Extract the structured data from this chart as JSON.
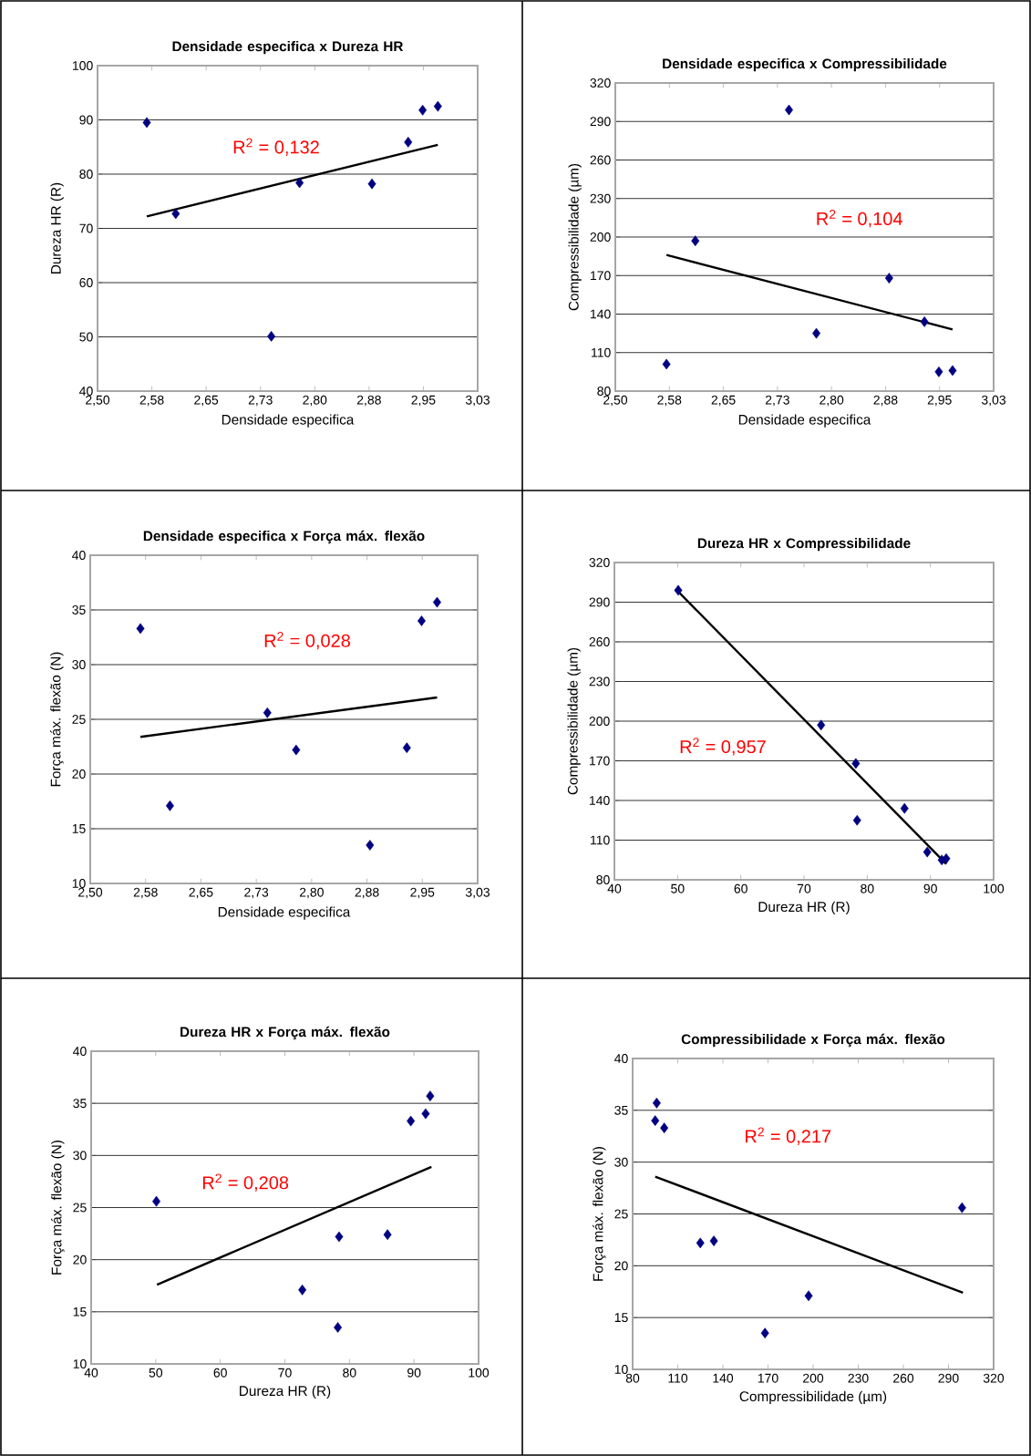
{
  "chart_data": [
    {
      "type": "scatter",
      "title": "Densidade especifica x Dureza HR",
      "xlabel": "Densidade especifica",
      "ylabel": "Dureza HR (R)",
      "annotations": [
        "R$^{2}$ = 0,132"
      ],
      "grid": "y",
      "xlim": [
        2.5,
        3.025
      ],
      "ylim": [
        40,
        100
      ],
      "xticks": [
        {
          "value": 2.5,
          "label": "2,50"
        },
        {
          "value": 2.575,
          "label": "2,58"
        },
        {
          "value": 2.65,
          "label": "2,65"
        },
        {
          "value": 2.725,
          "label": "2,73"
        },
        {
          "value": 2.8,
          "label": "2,80"
        },
        {
          "value": 2.875,
          "label": "2,88"
        },
        {
          "value": 2.95,
          "label": "2,95"
        },
        {
          "value": 3.025,
          "label": "3,03"
        }
      ],
      "yticks": [
        40,
        50,
        60,
        70,
        80,
        90,
        100
      ],
      "series": [
        {
          "type": "scatter",
          "color": "#000080",
          "marker": "diamond",
          "x": [
            2.568,
            2.608,
            2.74,
            2.779,
            2.879,
            2.929,
            2.949,
            2.97
          ],
          "values": [
            89.5,
            72.7,
            50.1,
            78.4,
            78.2,
            85.9,
            91.8,
            92.5
          ]
        },
        {
          "type": "line",
          "color": "#000000",
          "line_style": "solid",
          "x": [
            2.568,
            2.97
          ],
          "values": [
            72.2,
            85.4
          ]
        }
      ]
    },
    {
      "type": "scatter",
      "title": "Densidade especifica x Compressibilidade",
      "xlabel": "Densidade especifica",
      "ylabel": "Compressibilidade (µm)",
      "annotations": [
        "R$^{2}$ = 0,104"
      ],
      "grid": "y",
      "xlim": [
        2.5,
        3.025
      ],
      "ylim": [
        80,
        320
      ],
      "xticks": [
        {
          "value": 2.5,
          "label": "2,50"
        },
        {
          "value": 2.575,
          "label": "2,58"
        },
        {
          "value": 2.65,
          "label": "2,65"
        },
        {
          "value": 2.725,
          "label": "2,73"
        },
        {
          "value": 2.8,
          "label": "2,80"
        },
        {
          "value": 2.875,
          "label": "2,88"
        },
        {
          "value": 2.95,
          "label": "2,95"
        },
        {
          "value": 3.025,
          "label": "3,03"
        }
      ],
      "yticks": [
        80,
        110,
        140,
        170,
        200,
        230,
        260,
        290,
        320
      ],
      "series": [
        {
          "type": "scatter",
          "color": "#000080",
          "marker": "diamond",
          "x": [
            2.571,
            2.611,
            2.741,
            2.779,
            2.88,
            2.929,
            2.949,
            2.968
          ],
          "values": [
            101,
            197,
            299,
            125,
            168,
            134,
            95,
            96
          ]
        },
        {
          "type": "line",
          "color": "#000000",
          "line_style": "solid",
          "x": [
            2.571,
            2.968
          ],
          "values": [
            186,
            128
          ]
        }
      ]
    },
    {
      "type": "scatter",
      "title": "Densidade especifica x Força máx. flexão",
      "xlabel": "Densidade especifica",
      "ylabel": "Força máx. flexão (N)",
      "annotations": [
        "R$^{2}$ = 0,028"
      ],
      "grid": "y",
      "xlim": [
        2.5,
        3.025
      ],
      "ylim": [
        10,
        40
      ],
      "xticks": [
        {
          "value": 2.5,
          "label": "2,50"
        },
        {
          "value": 2.575,
          "label": "2,58"
        },
        {
          "value": 2.65,
          "label": "2,65"
        },
        {
          "value": 2.725,
          "label": "2,73"
        },
        {
          "value": 2.8,
          "label": "2,80"
        },
        {
          "value": 2.875,
          "label": "2,88"
        },
        {
          "value": 2.95,
          "label": "2,95"
        },
        {
          "value": 3.025,
          "label": "3,03"
        }
      ],
      "yticks": [
        10,
        15,
        20,
        25,
        30,
        35,
        40
      ],
      "series": [
        {
          "type": "scatter",
          "color": "#000080",
          "marker": "diamond",
          "x": [
            2.568,
            2.608,
            2.74,
            2.779,
            2.879,
            2.929,
            2.949,
            2.97
          ],
          "values": [
            33.3,
            17.1,
            25.6,
            22.2,
            13.5,
            22.4,
            34.0,
            35.7
          ]
        },
        {
          "type": "line",
          "color": "#000000",
          "line_style": "solid",
          "x": [
            2.568,
            2.97
          ],
          "values": [
            23.4,
            27.0
          ]
        }
      ]
    },
    {
      "type": "scatter",
      "title": "Dureza HR x Compressibilidade",
      "xlabel": "Dureza HR (R)",
      "ylabel": "Compressibilidade (µm)",
      "annotations": [
        "R$^{2}$ = 0,957"
      ],
      "grid": "y",
      "xlim": [
        40,
        100
      ],
      "ylim": [
        80,
        320
      ],
      "xticks": [
        40,
        50,
        60,
        70,
        80,
        90,
        100
      ],
      "yticks": [
        80,
        110,
        140,
        170,
        200,
        230,
        260,
        290,
        320
      ],
      "series": [
        {
          "type": "scatter",
          "color": "#000080",
          "marker": "diamond",
          "x": [
            89.5,
            72.7,
            50.1,
            78.4,
            78.2,
            85.9,
            91.8,
            92.5
          ],
          "values": [
            101,
            197,
            299,
            125,
            168,
            134,
            95,
            96
          ]
        },
        {
          "type": "line",
          "color": "#000000",
          "line_style": "solid",
          "x": [
            50.1,
            92.5
          ],
          "values": [
            298,
            92
          ]
        }
      ]
    },
    {
      "type": "scatter",
      "title": "Dureza HR x Força máx. flexão",
      "xlabel": "Dureza HR (R)",
      "ylabel": "Força máx. flexão (N)",
      "annotations": [
        "R$^{2}$ = 0,208"
      ],
      "grid": "y",
      "xlim": [
        40,
        100
      ],
      "ylim": [
        10,
        40
      ],
      "xticks": [
        40,
        50,
        60,
        70,
        80,
        90,
        100
      ],
      "yticks": [
        10,
        15,
        20,
        25,
        30,
        35,
        40
      ],
      "series": [
        {
          "type": "scatter",
          "color": "#000080",
          "marker": "diamond",
          "x": [
            89.5,
            72.7,
            50.1,
            78.4,
            78.2,
            85.9,
            91.8,
            92.5
          ],
          "values": [
            33.3,
            17.1,
            25.6,
            22.2,
            13.5,
            22.4,
            34.0,
            35.7
          ]
        },
        {
          "type": "line",
          "color": "#000000",
          "line_style": "solid",
          "x": [
            50.2,
            92.7
          ],
          "values": [
            17.6,
            28.9
          ]
        }
      ]
    },
    {
      "type": "scatter",
      "title": "Compressibilidade x Força máx. flexão",
      "xlabel": "Compressibilidade (µm)",
      "ylabel": "Força máx. flexão (N)",
      "annotations": [
        "R$^{2}$ = 0,217"
      ],
      "grid": "y",
      "xlim": [
        80,
        320
      ],
      "ylim": [
        10,
        40
      ],
      "xticks": [
        80,
        110,
        140,
        170,
        200,
        230,
        260,
        290,
        320
      ],
      "yticks": [
        10,
        15,
        20,
        25,
        30,
        35,
        40
      ],
      "series": [
        {
          "type": "scatter",
          "color": "#000080",
          "marker": "diamond",
          "x": [
            101,
            197,
            299,
            125,
            168,
            134,
            95,
            96
          ],
          "values": [
            33.3,
            17.1,
            25.6,
            22.2,
            13.5,
            22.4,
            34.0,
            35.7
          ]
        },
        {
          "type": "line",
          "color": "#000000",
          "line_style": "solid",
          "x": [
            95,
            299.6
          ],
          "values": [
            28.6,
            17.4
          ]
        }
      ]
    }
  ]
}
